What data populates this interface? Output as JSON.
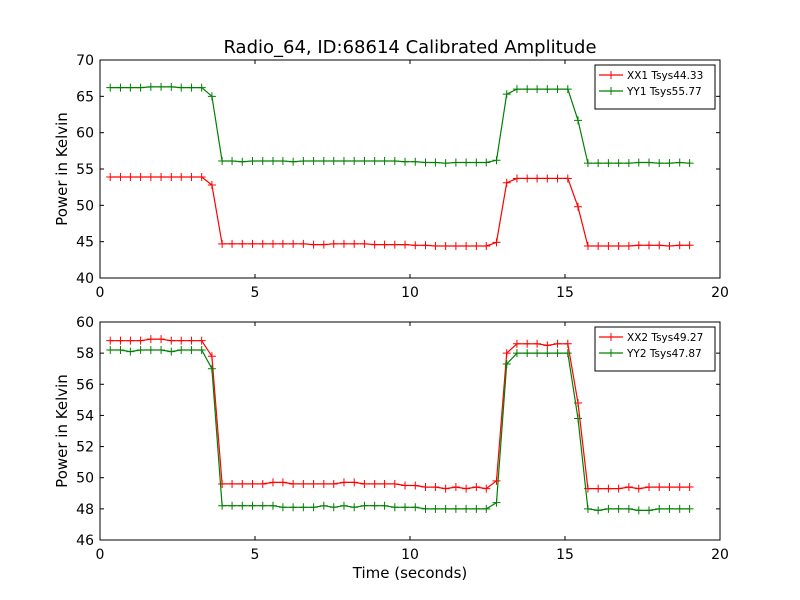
{
  "figure": {
    "title": "Radio_64, ID:68614 Calibrated Amplitude",
    "xlabel": "Time (seconds)"
  },
  "chart_data": [
    {
      "type": "line",
      "ylabel": "Power in Kelvin",
      "xlim": [
        0,
        20
      ],
      "ylim": [
        40,
        70
      ],
      "xticks": [
        0,
        5,
        10,
        15,
        20
      ],
      "yticks": [
        40,
        45,
        50,
        55,
        60,
        65,
        70
      ],
      "legend_position": "top-right",
      "marker": "plus",
      "series": [
        {
          "name": "XX1 Tsys44.33",
          "color": "#ff0000",
          "x": [
            0.33,
            0.66,
            0.98,
            1.31,
            1.64,
            1.97,
            2.3,
            2.62,
            2.95,
            3.28,
            3.61,
            3.94,
            4.26,
            4.59,
            4.92,
            5.25,
            5.58,
            5.9,
            6.23,
            6.56,
            6.89,
            7.22,
            7.54,
            7.87,
            8.2,
            8.53,
            8.86,
            9.18,
            9.51,
            9.84,
            10.17,
            10.5,
            10.82,
            11.15,
            11.48,
            11.81,
            12.14,
            12.46,
            12.79,
            13.12,
            13.45,
            13.78,
            14.1,
            14.43,
            14.76,
            15.09,
            15.42,
            15.74,
            16.07,
            16.4,
            16.73,
            17.06,
            17.38,
            17.71,
            18.04,
            18.37,
            18.7,
            19.02
          ],
          "y": [
            53.9,
            53.9,
            53.9,
            53.9,
            53.9,
            53.9,
            53.9,
            53.9,
            53.9,
            53.9,
            52.8,
            44.7,
            44.7,
            44.7,
            44.7,
            44.7,
            44.7,
            44.7,
            44.7,
            44.7,
            44.6,
            44.6,
            44.7,
            44.7,
            44.7,
            44.7,
            44.6,
            44.6,
            44.6,
            44.6,
            44.5,
            44.5,
            44.4,
            44.4,
            44.4,
            44.4,
            44.4,
            44.4,
            44.9,
            53.1,
            53.7,
            53.7,
            53.7,
            53.7,
            53.7,
            53.7,
            49.8,
            44.4,
            44.4,
            44.4,
            44.4,
            44.4,
            44.5,
            44.5,
            44.5,
            44.4,
            44.5,
            44.5
          ]
        },
        {
          "name": "YY1 Tsys55.77",
          "color": "#008000",
          "x": [
            0.33,
            0.66,
            0.98,
            1.31,
            1.64,
            1.97,
            2.3,
            2.62,
            2.95,
            3.28,
            3.61,
            3.94,
            4.26,
            4.59,
            4.92,
            5.25,
            5.58,
            5.9,
            6.23,
            6.56,
            6.89,
            7.22,
            7.54,
            7.87,
            8.2,
            8.53,
            8.86,
            9.18,
            9.51,
            9.84,
            10.17,
            10.5,
            10.82,
            11.15,
            11.48,
            11.81,
            12.14,
            12.46,
            12.79,
            13.12,
            13.45,
            13.78,
            14.1,
            14.43,
            14.76,
            15.09,
            15.42,
            15.74,
            16.07,
            16.4,
            16.73,
            17.06,
            17.38,
            17.71,
            18.04,
            18.37,
            18.7,
            19.02
          ],
          "y": [
            66.2,
            66.2,
            66.2,
            66.2,
            66.3,
            66.3,
            66.3,
            66.2,
            66.2,
            66.2,
            65.0,
            56.1,
            56.1,
            56.0,
            56.1,
            56.1,
            56.1,
            56.1,
            56.0,
            56.1,
            56.1,
            56.1,
            56.1,
            56.1,
            56.1,
            56.1,
            56.1,
            56.1,
            56.1,
            56.0,
            56.0,
            55.9,
            55.9,
            55.8,
            55.9,
            55.9,
            55.9,
            55.9,
            56.2,
            65.3,
            66.0,
            66.0,
            66.0,
            66.0,
            66.0,
            66.0,
            61.7,
            55.8,
            55.8,
            55.8,
            55.8,
            55.8,
            55.9,
            55.9,
            55.8,
            55.8,
            55.9,
            55.8
          ]
        }
      ]
    },
    {
      "type": "line",
      "ylabel": "Power in Kelvin",
      "xlabel": "Time (seconds)",
      "xlim": [
        0,
        20
      ],
      "ylim": [
        46,
        60
      ],
      "xticks": [
        0,
        5,
        10,
        15,
        20
      ],
      "yticks": [
        46,
        48,
        50,
        52,
        54,
        56,
        58,
        60
      ],
      "legend_position": "top-right",
      "marker": "plus",
      "series": [
        {
          "name": "XX2 Tsys49.27",
          "color": "#ff0000",
          "x": [
            0.33,
            0.66,
            0.98,
            1.31,
            1.64,
            1.97,
            2.3,
            2.62,
            2.95,
            3.28,
            3.61,
            3.94,
            4.26,
            4.59,
            4.92,
            5.25,
            5.58,
            5.9,
            6.23,
            6.56,
            6.89,
            7.22,
            7.54,
            7.87,
            8.2,
            8.53,
            8.86,
            9.18,
            9.51,
            9.84,
            10.17,
            10.5,
            10.82,
            11.15,
            11.48,
            11.81,
            12.14,
            12.46,
            12.79,
            13.12,
            13.45,
            13.78,
            14.1,
            14.43,
            14.76,
            15.09,
            15.42,
            15.74,
            16.07,
            16.4,
            16.73,
            17.06,
            17.38,
            17.71,
            18.04,
            18.37,
            18.7,
            19.02
          ],
          "y": [
            58.8,
            58.8,
            58.8,
            58.8,
            58.9,
            58.9,
            58.8,
            58.8,
            58.8,
            58.8,
            57.8,
            49.6,
            49.6,
            49.6,
            49.6,
            49.6,
            49.7,
            49.7,
            49.6,
            49.6,
            49.6,
            49.6,
            49.6,
            49.7,
            49.7,
            49.6,
            49.6,
            49.6,
            49.6,
            49.5,
            49.5,
            49.4,
            49.4,
            49.3,
            49.4,
            49.3,
            49.4,
            49.3,
            49.8,
            58.0,
            58.6,
            58.6,
            58.6,
            58.5,
            58.6,
            58.6,
            54.8,
            49.3,
            49.3,
            49.3,
            49.3,
            49.4,
            49.3,
            49.4,
            49.4,
            49.4,
            49.4,
            49.4
          ]
        },
        {
          "name": "YY2 Tsys47.87",
          "color": "#008000",
          "x": [
            0.33,
            0.66,
            0.98,
            1.31,
            1.64,
            1.97,
            2.3,
            2.62,
            2.95,
            3.28,
            3.61,
            3.94,
            4.26,
            4.59,
            4.92,
            5.25,
            5.58,
            5.9,
            6.23,
            6.56,
            6.89,
            7.22,
            7.54,
            7.87,
            8.2,
            8.53,
            8.86,
            9.18,
            9.51,
            9.84,
            10.17,
            10.5,
            10.82,
            11.15,
            11.48,
            11.81,
            12.14,
            12.46,
            12.79,
            13.12,
            13.45,
            13.78,
            14.1,
            14.43,
            14.76,
            15.09,
            15.42,
            15.74,
            16.07,
            16.4,
            16.73,
            17.06,
            17.38,
            17.71,
            18.04,
            18.37,
            18.7,
            19.02
          ],
          "y": [
            58.2,
            58.2,
            58.1,
            58.2,
            58.2,
            58.2,
            58.1,
            58.2,
            58.2,
            58.2,
            57.0,
            48.2,
            48.2,
            48.2,
            48.2,
            48.2,
            48.2,
            48.1,
            48.1,
            48.1,
            48.1,
            48.2,
            48.1,
            48.2,
            48.1,
            48.2,
            48.2,
            48.2,
            48.1,
            48.1,
            48.1,
            48.0,
            48.0,
            48.0,
            48.0,
            48.0,
            48.0,
            48.0,
            48.4,
            57.3,
            58.0,
            58.0,
            58.0,
            58.0,
            58.0,
            58.0,
            53.8,
            48.0,
            47.9,
            48.0,
            48.0,
            48.0,
            47.9,
            47.9,
            48.0,
            48.0,
            48.0,
            48.0
          ]
        }
      ]
    }
  ]
}
